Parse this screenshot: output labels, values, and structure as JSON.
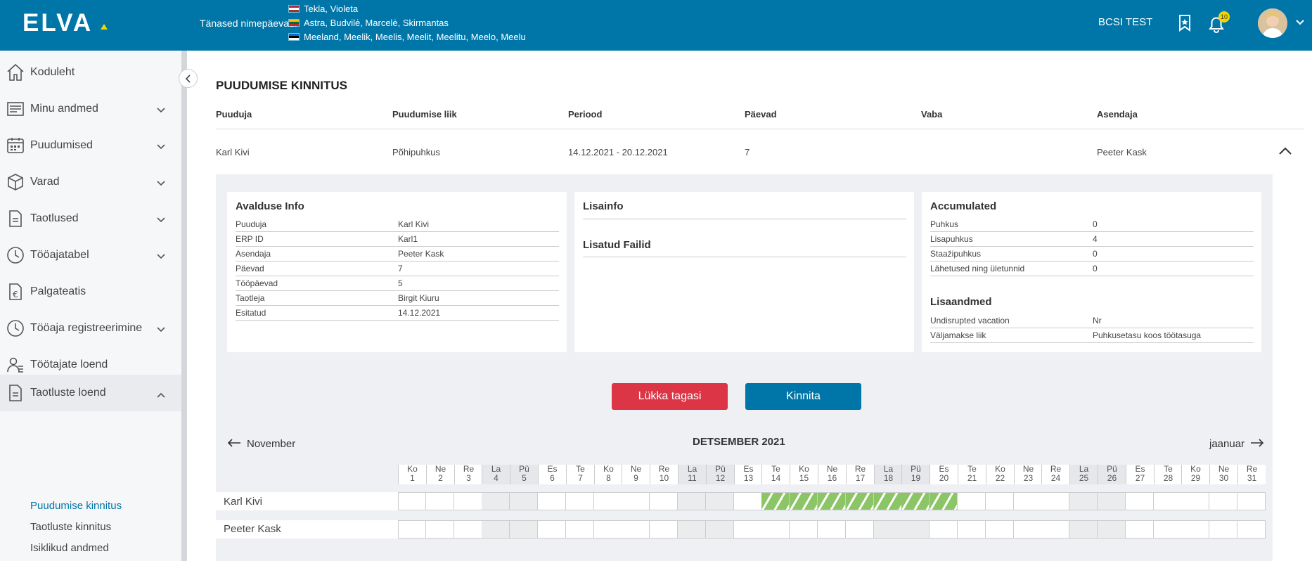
{
  "header": {
    "logo_text": "ELVA",
    "nimepaevad_label": "Tänased nimepäevad:",
    "nimepaevad": [
      {
        "flag": "latvia",
        "names": "Tekla, Violeta"
      },
      {
        "flag": "lithuania",
        "names": "Astra, Budvilė, Marcelė, Skirmantas"
      },
      {
        "flag": "estonia",
        "names": "Meeland, Meelik, Meelis, Meelit, Meelitu, Meelo, Meelu"
      }
    ],
    "environment": "BCSI TEST",
    "notification_count": "10",
    "brand_color": "#0076a8"
  },
  "sidebar": {
    "items": [
      {
        "label": "Koduleht",
        "icon": "home-icon",
        "expandable": false
      },
      {
        "label": "Minu andmed",
        "icon": "profile-card-icon",
        "expandable": true
      },
      {
        "label": "Puudumised",
        "icon": "calendar-icon",
        "expandable": true
      },
      {
        "label": "Varad",
        "icon": "box-icon",
        "expandable": true
      },
      {
        "label": "Taotlused",
        "icon": "document-icon",
        "expandable": true
      },
      {
        "label": "Tööajatabel",
        "icon": "clock-icon",
        "expandable": true
      },
      {
        "label": "Palgateatis",
        "icon": "euro-document-icon",
        "expandable": false
      },
      {
        "label": "Tööaja registreerimine",
        "icon": "clock-icon",
        "expandable": true
      },
      {
        "label": "Töötajate loend",
        "icon": "users-icon",
        "expandable": false
      },
      {
        "label": "Taotluste loend",
        "icon": "document-icon",
        "expandable": true,
        "expanded": true
      }
    ],
    "subitems": [
      "Puudumise kinnitus",
      "Taotluste kinnitus",
      "Isiklikud andmed"
    ]
  },
  "main": {
    "title": "PUUDUMISE KINNITUS",
    "columns": [
      "Puuduja",
      "Puudumise liik",
      "Periood",
      "Päevad",
      "Vaba",
      "Asendaja"
    ],
    "row": {
      "puuduja": "Karl Kivi",
      "liik": "Põhipuhkus",
      "periood": "14.12.2021 - 20.12.2021",
      "paevad": "7",
      "vaba": "",
      "asendaja": "Peeter Kask"
    }
  },
  "avaldus": {
    "title": "Avalduse Info",
    "rows": [
      {
        "k": "Puuduja",
        "v": "Karl Kivi"
      },
      {
        "k": "ERP ID",
        "v": "Karl1"
      },
      {
        "k": "Asendaja",
        "v": "Peeter Kask"
      },
      {
        "k": "Päevad",
        "v": "7"
      },
      {
        "k": "Tööpäevad",
        "v": "5"
      },
      {
        "k": "Taotleja",
        "v": "Birgit Kiuru"
      },
      {
        "k": "Esitatud",
        "v": "14.12.2021"
      }
    ]
  },
  "lisainfo": {
    "title": "Lisainfo",
    "files_title": "Lisatud Failid"
  },
  "accumulated": {
    "title": "Accumulated",
    "rows": [
      {
        "k": "Puhkus",
        "v": "0"
      },
      {
        "k": "Lisapuhkus",
        "v": "4"
      },
      {
        "k": "Staažipuhkus",
        "v": "0"
      },
      {
        "k": "Lähetused ning ületunnid",
        "v": "0"
      }
    ],
    "extra_title": "Lisaandmed",
    "extra_rows": [
      {
        "k": "Undisrupted vacation",
        "v": "Nr"
      },
      {
        "k": "Väljamakse liik",
        "v": "Puhkusetasu koos töötasuga"
      }
    ]
  },
  "actions": {
    "reject": "Lükka tagasi",
    "approve": "Kinnita",
    "reject_color": "#dc3545",
    "approve_color": "#0076a8"
  },
  "calendar": {
    "title": "DETSEMBER 2021",
    "prev": "November",
    "next": "jaanuar",
    "days": [
      {
        "wd": "Ko",
        "d": "1"
      },
      {
        "wd": "Ne",
        "d": "2"
      },
      {
        "wd": "Re",
        "d": "3"
      },
      {
        "wd": "La",
        "d": "4"
      },
      {
        "wd": "Pü",
        "d": "5"
      },
      {
        "wd": "Es",
        "d": "6"
      },
      {
        "wd": "Te",
        "d": "7"
      },
      {
        "wd": "Ko",
        "d": "8"
      },
      {
        "wd": "Ne",
        "d": "9"
      },
      {
        "wd": "Re",
        "d": "10"
      },
      {
        "wd": "La",
        "d": "11"
      },
      {
        "wd": "Pü",
        "d": "12"
      },
      {
        "wd": "Es",
        "d": "13"
      },
      {
        "wd": "Te",
        "d": "14"
      },
      {
        "wd": "Ko",
        "d": "15"
      },
      {
        "wd": "Ne",
        "d": "16"
      },
      {
        "wd": "Re",
        "d": "17"
      },
      {
        "wd": "La",
        "d": "18"
      },
      {
        "wd": "Pü",
        "d": "19"
      },
      {
        "wd": "Es",
        "d": "20"
      },
      {
        "wd": "Te",
        "d": "21"
      },
      {
        "wd": "Ko",
        "d": "22"
      },
      {
        "wd": "Ne",
        "d": "23"
      },
      {
        "wd": "Re",
        "d": "24"
      },
      {
        "wd": "La",
        "d": "25"
      },
      {
        "wd": "Pü",
        "d": "26"
      },
      {
        "wd": "Es",
        "d": "27"
      },
      {
        "wd": "Te",
        "d": "28"
      },
      {
        "wd": "Ko",
        "d": "29"
      },
      {
        "wd": "Ne",
        "d": "30"
      },
      {
        "wd": "Re",
        "d": "31"
      }
    ],
    "rows": [
      {
        "name": "Karl Kivi",
        "absence_days": [
          14,
          15,
          16,
          17,
          18,
          19,
          20
        ]
      },
      {
        "name": "Peeter Kask",
        "absence_days": []
      }
    ],
    "absence_color": "#8bc565"
  }
}
